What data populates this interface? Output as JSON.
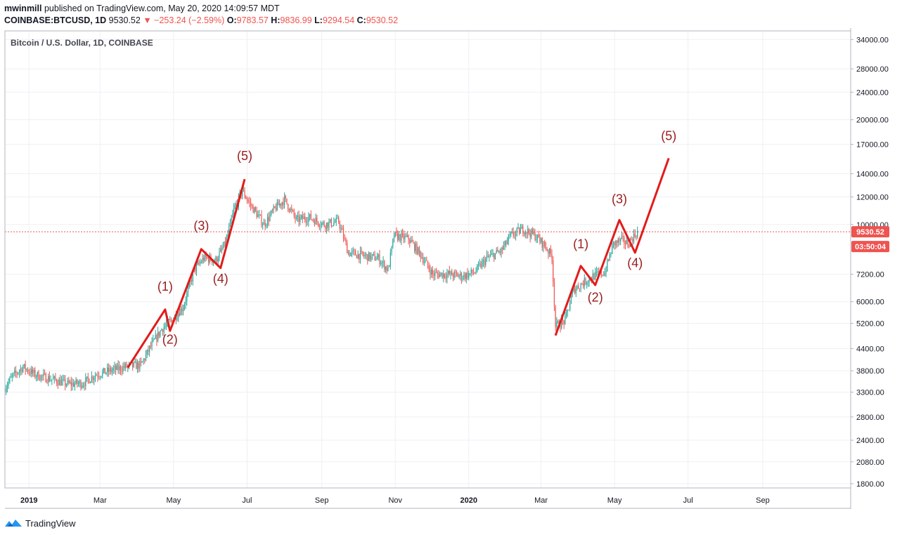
{
  "header": {
    "user": "mwinmill",
    "published": "published on TradingView.com, May 20, 2020 14:09:57 MDT",
    "symbol": "COINBASE:BTCUSD, 1D",
    "last": "9530.52",
    "arrow": "▼",
    "change": "−253.24 (−2.59%)",
    "o_label": "O:",
    "o_val": "9783.57",
    "h_label": "H:",
    "h_val": "9836.99",
    "l_label": "L:",
    "l_val": "9294.54",
    "c_label": "C:",
    "c_val": "9530.52"
  },
  "footer": {
    "brand": "TradingView"
  },
  "colors": {
    "up": "#26a69a",
    "down": "#ef5350",
    "wave": "#e21b1b",
    "label": "#9b1c1c",
    "grid": "#eef0f3",
    "price_line": "#ef5350"
  },
  "chart_data": {
    "type": "candlestick",
    "title": "Bitcoin / U.S. Dollar, 1D, COINBASE",
    "scale": "log",
    "ylim": [
      1750,
      36000
    ],
    "y_ticks": [
      "34000.00",
      "28000.00",
      "24000.00",
      "20000.00",
      "17000.00",
      "14000.00",
      "12000.00",
      "10000.00",
      "7200.00",
      "6000.00",
      "5200.00",
      "4400.00",
      "3800.00",
      "3300.00",
      "2800.00",
      "2400.00",
      "2080.00",
      "1800.00"
    ],
    "x_ticks": [
      "2019",
      "Mar",
      "May",
      "Jul",
      "Sep",
      "Nov",
      "2020",
      "Mar",
      "May",
      "Jul",
      "Sep"
    ],
    "x_tick_days": [
      0,
      59,
      120,
      181,
      243,
      304,
      365,
      425,
      486,
      547,
      609
    ],
    "x_range_days": [
      -20,
      682
    ],
    "last_price": {
      "value": 9530.52,
      "label": "9530.52"
    },
    "countdown": "03:50:04",
    "price_path": [
      {
        "day": -20,
        "price": 3400
      },
      {
        "day": -14,
        "price": 3650
      },
      {
        "day": -5,
        "price": 3900
      },
      {
        "day": 5,
        "price": 3700
      },
      {
        "day": 18,
        "price": 3600
      },
      {
        "day": 32,
        "price": 3480
      },
      {
        "day": 45,
        "price": 3500
      },
      {
        "day": 55,
        "price": 3700
      },
      {
        "day": 67,
        "price": 3800
      },
      {
        "day": 80,
        "price": 3900
      },
      {
        "day": 93,
        "price": 3950
      },
      {
        "day": 100,
        "price": 4400
      },
      {
        "day": 110,
        "price": 5000
      },
      {
        "day": 118,
        "price": 5300
      },
      {
        "day": 128,
        "price": 5800
      },
      {
        "day": 137,
        "price": 7400
      },
      {
        "day": 145,
        "price": 8000
      },
      {
        "day": 155,
        "price": 7900
      },
      {
        "day": 163,
        "price": 8800
      },
      {
        "day": 170,
        "price": 11000
      },
      {
        "day": 177,
        "price": 12500
      },
      {
        "day": 183,
        "price": 11500
      },
      {
        "day": 195,
        "price": 10000
      },
      {
        "day": 205,
        "price": 11200
      },
      {
        "day": 212,
        "price": 11800
      },
      {
        "day": 222,
        "price": 10300
      },
      {
        "day": 232,
        "price": 10500
      },
      {
        "day": 245,
        "price": 10000
      },
      {
        "day": 257,
        "price": 10200
      },
      {
        "day": 265,
        "price": 8300
      },
      {
        "day": 280,
        "price": 8100
      },
      {
        "day": 290,
        "price": 8000
      },
      {
        "day": 298,
        "price": 7400
      },
      {
        "day": 303,
        "price": 9300
      },
      {
        "day": 315,
        "price": 9100
      },
      {
        "day": 325,
        "price": 8200
      },
      {
        "day": 335,
        "price": 7200
      },
      {
        "day": 348,
        "price": 7200
      },
      {
        "day": 360,
        "price": 7100
      },
      {
        "day": 370,
        "price": 7300
      },
      {
        "day": 380,
        "price": 8000
      },
      {
        "day": 392,
        "price": 8400
      },
      {
        "day": 400,
        "price": 9300
      },
      {
        "day": 410,
        "price": 9700
      },
      {
        "day": 420,
        "price": 9300
      },
      {
        "day": 428,
        "price": 8700
      },
      {
        "day": 434,
        "price": 8100
      },
      {
        "day": 437,
        "price": 5100
      },
      {
        "day": 445,
        "price": 5300
      },
      {
        "day": 452,
        "price": 6500
      },
      {
        "day": 460,
        "price": 6800
      },
      {
        "day": 468,
        "price": 7100
      },
      {
        "day": 478,
        "price": 7300
      },
      {
        "day": 485,
        "price": 8800
      },
      {
        "day": 492,
        "price": 9000
      },
      {
        "day": 497,
        "price": 8800
      },
      {
        "day": 505,
        "price": 9530
      }
    ],
    "wave_1": {
      "points": [
        {
          "day": 82,
          "price": 3880
        },
        {
          "day": 113,
          "price": 5700
        },
        {
          "day": 117,
          "price": 4950
        },
        {
          "day": 143,
          "price": 8500
        },
        {
          "day": 159,
          "price": 7500
        },
        {
          "day": 179,
          "price": 13500
        }
      ],
      "labels": [
        {
          "text": "(1)",
          "day": 113,
          "price": 6450
        },
        {
          "text": "(2)",
          "day": 117,
          "price": 4550
        },
        {
          "text": "(3)",
          "day": 143,
          "price": 9650
        },
        {
          "text": "(4)",
          "day": 159,
          "price": 6800
        },
        {
          "text": "(5)",
          "day": 179,
          "price": 15300
        }
      ]
    },
    "wave_2": {
      "points": [
        {
          "day": 437,
          "price": 4800
        },
        {
          "day": 458,
          "price": 7600
        },
        {
          "day": 470,
          "price": 6700
        },
        {
          "day": 490,
          "price": 10300
        },
        {
          "day": 503,
          "price": 8300
        },
        {
          "day": 531,
          "price": 15500
        }
      ],
      "labels": [
        {
          "text": "(1)",
          "day": 458,
          "price": 8550
        },
        {
          "text": "(2)",
          "day": 470,
          "price": 6000
        },
        {
          "text": "(3)",
          "day": 490,
          "price": 11500
        },
        {
          "text": "(4)",
          "day": 503,
          "price": 7550
        },
        {
          "text": "(5)",
          "day": 531,
          "price": 17500
        }
      ]
    }
  }
}
